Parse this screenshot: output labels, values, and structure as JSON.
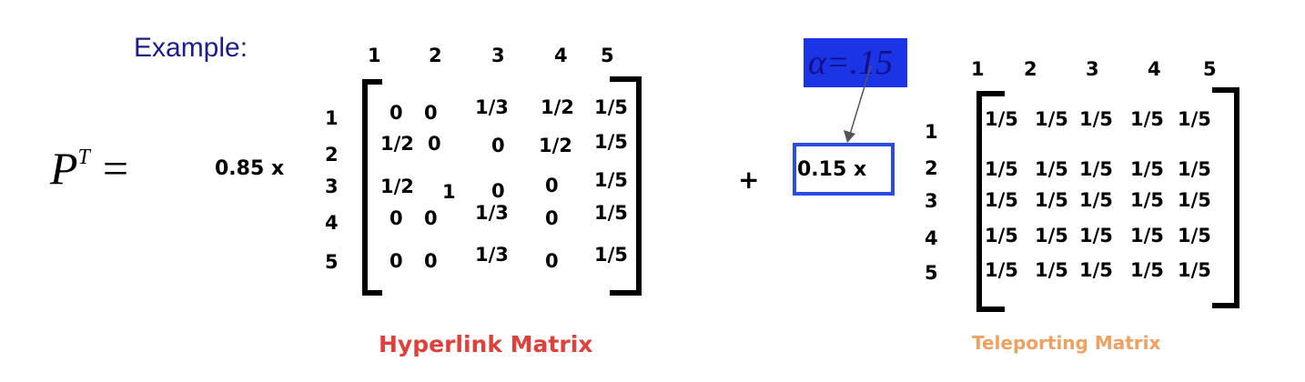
{
  "example_label": "Example:",
  "lhs": {
    "symbol": "P",
    "superscript": "T",
    "equals": "="
  },
  "term1": {
    "coefficient": "0.85 x",
    "col_headers": [
      "1",
      "2",
      "3",
      "4",
      "5"
    ],
    "row_headers": [
      "1",
      "2",
      "3",
      "4",
      "5"
    ],
    "rows": [
      [
        "0",
        "0",
        "1/3",
        "1/2",
        "1/5"
      ],
      [
        "1/2",
        "0",
        "0",
        "1/2",
        "1/5"
      ],
      [
        "1/2",
        "1",
        "0",
        "0",
        "1/5"
      ],
      [
        "0",
        "0",
        "1/3",
        "0",
        "1/5"
      ],
      [
        "0",
        "0",
        "1/3",
        "0",
        "1/5"
      ]
    ],
    "caption": "Hyperlink Matrix"
  },
  "operator": "+",
  "term2": {
    "coefficient": "0.15 x",
    "alpha_annotation": "α=.15",
    "col_headers": [
      "1",
      "2",
      "3",
      "4",
      "5"
    ],
    "row_headers": [
      "1",
      "2",
      "3",
      "4",
      "5"
    ],
    "rows": [
      [
        "1/5",
        "1/5",
        "1/5",
        "1/5",
        "1/5"
      ],
      [
        "1/5",
        "1/5",
        "1/5",
        "1/5",
        "1/5"
      ],
      [
        "1/5",
        "1/5",
        "1/5",
        "1/5",
        "1/5"
      ],
      [
        "1/5",
        "1/5",
        "1/5",
        "1/5",
        "1/5"
      ],
      [
        "1/5",
        "1/5",
        "1/5",
        "1/5",
        "1/5"
      ]
    ],
    "caption": "Teleporting Matrix"
  },
  "colors": {
    "example_text": "#1c1c8c",
    "alpha_highlight": "#1a34e6",
    "coefficient_box": "#2a4be6",
    "hyperlink_caption": "#e0403a",
    "teleport_caption": "#f0a060"
  }
}
